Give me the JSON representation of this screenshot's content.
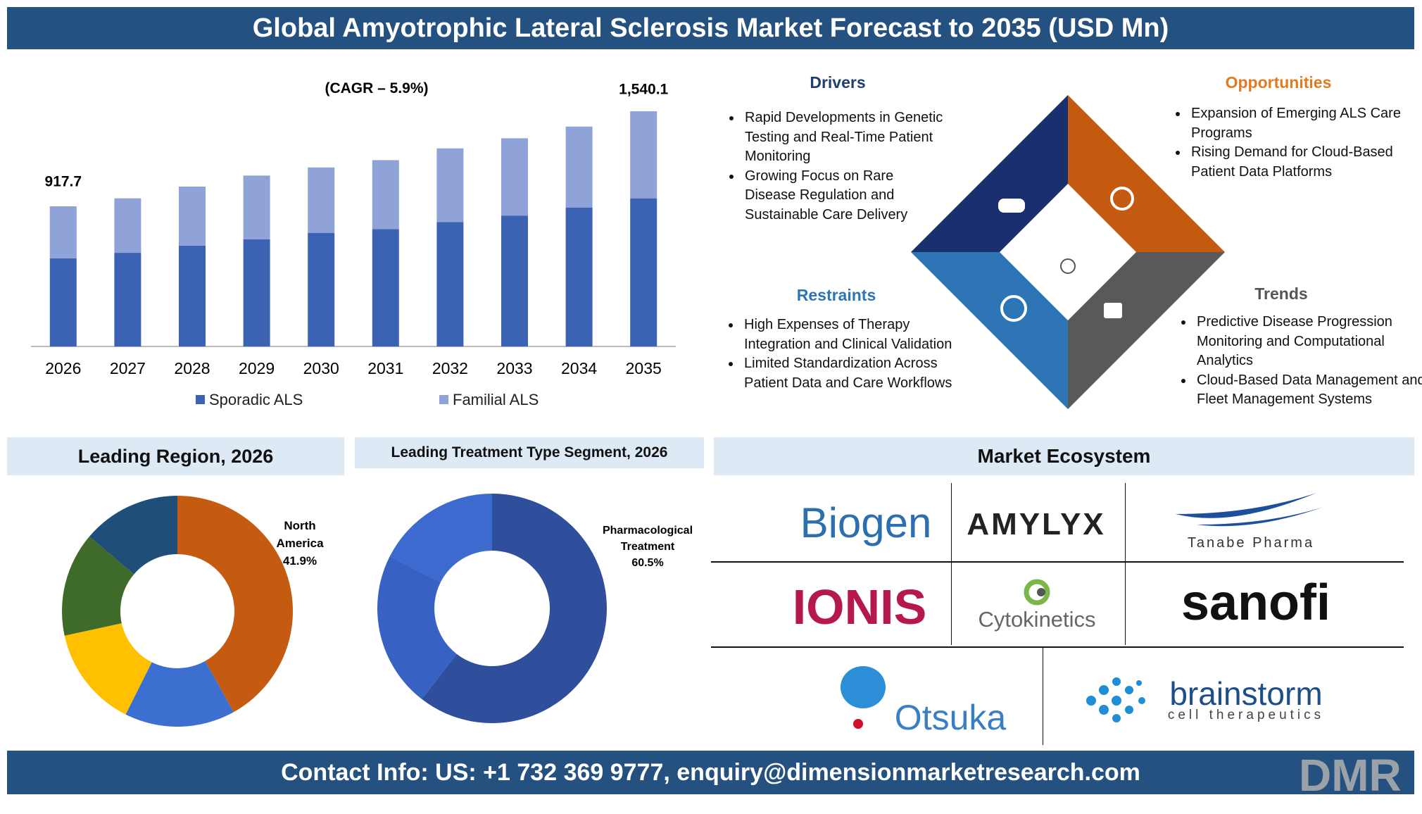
{
  "header": {
    "title": "Global Amyotrophic Lateral Sclerosis Market Forecast to 2035 (USD Mn)"
  },
  "chart_data": [
    {
      "type": "bar",
      "stacked": true,
      "subtitle": "(CAGR – 5.9%)",
      "categories": [
        "2026",
        "2027",
        "2028",
        "2029",
        "2030",
        "2031",
        "2032",
        "2033",
        "2034",
        "2035"
      ],
      "series": [
        {
          "name": "Sporadic ALS",
          "color": "#3c63b3",
          "values": [
            577,
            613,
            660,
            702,
            744,
            768,
            815,
            857,
            910,
            970
          ]
        },
        {
          "name": "Familial ALS",
          "color": "#8fa3d8",
          "values": [
            340.7,
            357,
            387,
            417,
            428,
            452,
            482,
            506,
            530,
            570.1
          ]
        }
      ],
      "total_labels": [
        "917.7",
        null,
        null,
        null,
        null,
        null,
        null,
        null,
        null,
        "1,540.1"
      ]
    },
    {
      "type": "donut",
      "title": "Leading Region, 2026",
      "categories": [
        "North America",
        null,
        null,
        null,
        null
      ],
      "values": [
        41.9,
        15.5,
        14.2,
        14.6,
        13.8
      ],
      "value_labels": [
        "41.9%",
        null,
        null,
        null,
        null
      ],
      "colors": [
        "#c55a11",
        "#3c6fcf",
        "#ffc000",
        "#3e6b2a",
        "#1f4e79"
      ]
    },
    {
      "type": "donut",
      "title": "Leading Treatment Type Segment, 2026",
      "categories": [
        "Pharmacological Treatment",
        null,
        null
      ],
      "values": [
        60.5,
        22,
        17.5
      ],
      "value_labels": [
        "60.5%",
        null,
        null
      ],
      "colors": [
        "#2f4f9c",
        "#3761c2",
        "#3c6acf"
      ]
    }
  ],
  "factors": {
    "drivers": {
      "title": "Drivers",
      "items": [
        "Rapid Developments in Genetic Testing and Real-Time Patient Monitoring",
        "Growing Focus on Rare Disease Regulation and Sustainable Care Delivery"
      ]
    },
    "opportunities": {
      "title": "Opportunities",
      "items": [
        "Expansion of Emerging ALS Care Programs",
        "Rising Demand for Cloud-Based Patient Data Platforms"
      ]
    },
    "restraints": {
      "title": "Restraints",
      "items": [
        "High Expenses of Therapy Integration and Clinical Validation",
        "Limited Standardization Across Patient Data and Care Workflows"
      ]
    },
    "trends": {
      "title": "Trends",
      "items": [
        "Predictive Disease Progression Monitoring and Computational Analytics",
        "Cloud-Based Data Management and Fleet Management Systems"
      ]
    }
  },
  "ecosystem": {
    "title": "Market Ecosystem",
    "companies": [
      "Biogen",
      "AMYLYX",
      "Tanabe Pharma",
      "IONIS",
      "Cytokinetics",
      "sanofi",
      "Otsuka",
      {
        "name": "brainstorm",
        "tagline": "cell therapeutics"
      }
    ]
  },
  "footer": {
    "contact": "Contact Info: US: +1 732 369 9777, enquiry@dimensionmarketresearch.com",
    "logo": "DMR"
  }
}
